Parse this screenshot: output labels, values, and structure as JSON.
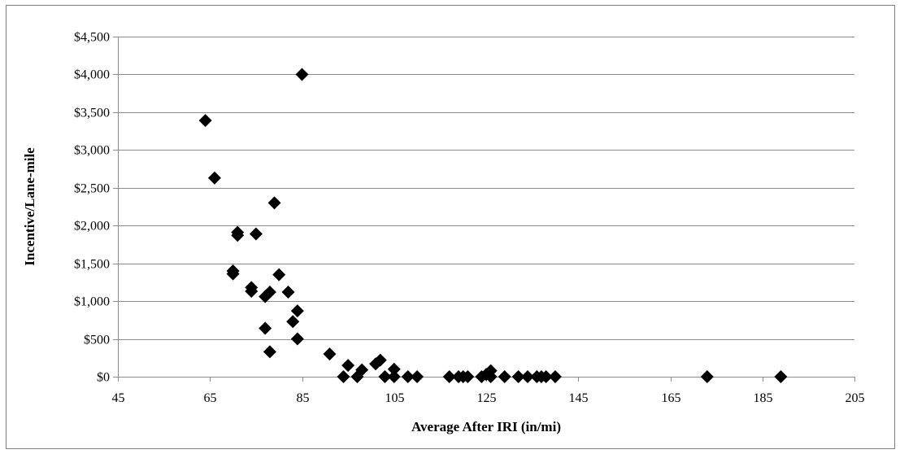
{
  "chart_data": {
    "type": "scatter",
    "title": "",
    "xlabel": "Average After IRI  (in/mi)",
    "ylabel": "Incentive/Lane-mile",
    "xlim": [
      45,
      205
    ],
    "ylim": [
      0,
      4500
    ],
    "x_ticks": [
      45,
      65,
      85,
      105,
      125,
      145,
      165,
      185,
      205
    ],
    "x_tick_labels": [
      "45",
      "65",
      "85",
      "105",
      "125",
      "145",
      "165",
      "185",
      "205"
    ],
    "y_ticks": [
      0,
      500,
      1000,
      1500,
      2000,
      2500,
      3000,
      3500,
      4000,
      4500
    ],
    "y_tick_labels": [
      "$0",
      "$500",
      "$1,000",
      "$1,500",
      "$2,000",
      "$2,500",
      "$3,000",
      "$3,500",
      "$4,000",
      "$4,500"
    ],
    "grid": "horizontal",
    "legend": "none",
    "marker": "diamond",
    "marker_color": "#000000",
    "series": [
      {
        "points": [
          [
            64,
            3390
          ],
          [
            66,
            2630
          ],
          [
            70,
            1400
          ],
          [
            70,
            1360
          ],
          [
            71,
            1910
          ],
          [
            71,
            1870
          ],
          [
            74,
            1180
          ],
          [
            74,
            1130
          ],
          [
            75,
            1890
          ],
          [
            77,
            1060
          ],
          [
            77,
            640
          ],
          [
            78,
            1120
          ],
          [
            78,
            330
          ],
          [
            79,
            2300
          ],
          [
            80,
            1350
          ],
          [
            82,
            1120
          ],
          [
            83,
            730
          ],
          [
            84,
            870
          ],
          [
            84,
            500
          ],
          [
            85,
            4000
          ],
          [
            91,
            300
          ],
          [
            94,
            0
          ],
          [
            95,
            150
          ],
          [
            97,
            0
          ],
          [
            98,
            90
          ],
          [
            101,
            170
          ],
          [
            102,
            220
          ],
          [
            103,
            0
          ],
          [
            105,
            0
          ],
          [
            105,
            100
          ],
          [
            108,
            0
          ],
          [
            110,
            0
          ],
          [
            117,
            0
          ],
          [
            119,
            0
          ],
          [
            120,
            0
          ],
          [
            121,
            0
          ],
          [
            124,
            0
          ],
          [
            125,
            30
          ],
          [
            126,
            0
          ],
          [
            126,
            80
          ],
          [
            129,
            0
          ],
          [
            132,
            0
          ],
          [
            134,
            0
          ],
          [
            136,
            0
          ],
          [
            137,
            0
          ],
          [
            138,
            0
          ],
          [
            140,
            0
          ],
          [
            173,
            0
          ],
          [
            189,
            0
          ]
        ]
      }
    ]
  }
}
